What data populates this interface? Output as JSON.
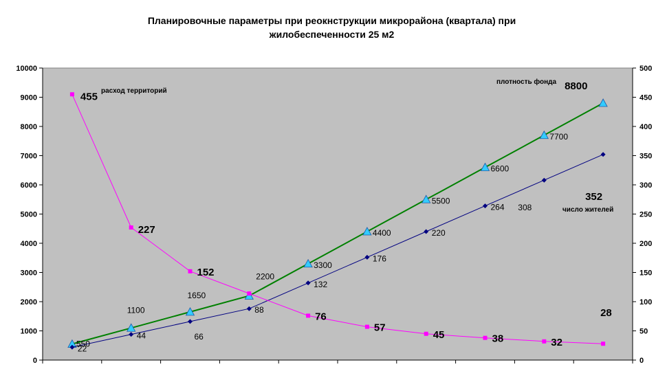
{
  "chart_data": {
    "type": "line",
    "title_line1": "Планировочные параметры при реокнструкции микрорайона (квартала) при",
    "title_line2": "жилобеспеченности  25 м2",
    "left_axis": {
      "min": 0,
      "max": 10000,
      "ticks": [
        "0",
        "1000",
        "2000",
        "3000",
        "4000",
        "5000",
        "6000",
        "7000",
        "8000",
        "9000",
        "10000"
      ]
    },
    "right_axis": {
      "min": 0,
      "max": 500,
      "ticks": [
        "0",
        "50",
        "100",
        "150",
        "200",
        "250",
        "300",
        "350",
        "400",
        "450",
        "500"
      ]
    },
    "grid": false,
    "series": [
      {
        "key": "fund",
        "axis": "left",
        "color": "#008000",
        "marker": "triangle",
        "marker_color": "#33ccff",
        "values": [
          550,
          1100,
          1650,
          2200,
          3300,
          4400,
          5500,
          6600,
          7700,
          8800
        ],
        "labels": [
          "550",
          "1100",
          "1650",
          "2200",
          "3300",
          "4400",
          "5500",
          "6600",
          "7700",
          "8800"
        ],
        "note": "плотность фонда"
      },
      {
        "key": "residents",
        "axis": "right",
        "color": "#000080",
        "marker": "diamond",
        "marker_color": "#000080",
        "values": [
          22,
          44,
          66,
          88,
          132,
          176,
          220,
          264,
          308,
          352
        ],
        "labels": [
          "22",
          "44",
          "66",
          "88",
          "132",
          "176",
          "220",
          "264",
          "308",
          "352"
        ],
        "note": "число жителей"
      },
      {
        "key": "territory",
        "axis": "right",
        "color": "#ff00ff",
        "marker": "square",
        "marker_color": "#ff00ff",
        "values": [
          455,
          227,
          152,
          114,
          76,
          57,
          45,
          38,
          32,
          28
        ],
        "labels": [
          "455",
          "227",
          "152",
          "",
          "76",
          "57",
          "45",
          "38",
          "32",
          "28"
        ],
        "note": "расход территорий"
      }
    ]
  }
}
